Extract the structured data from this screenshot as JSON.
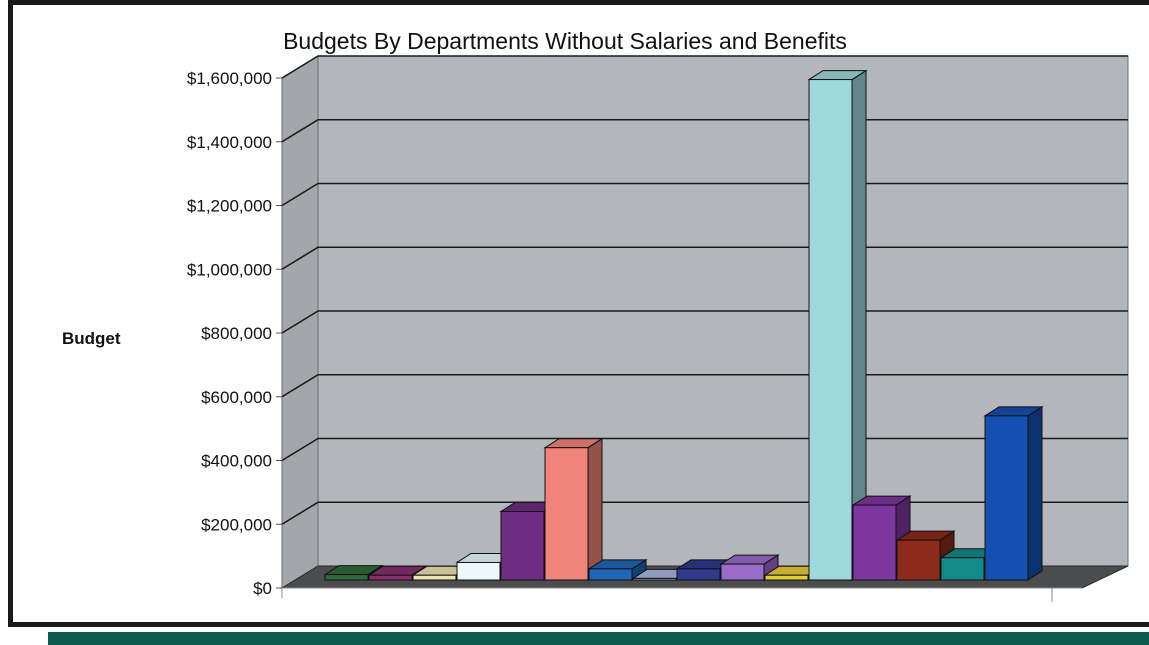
{
  "chart_data": {
    "type": "bar",
    "title": "Budgets By Departments Without Salaries and Benefits",
    "ylabel": "Budget",
    "xlabel": "",
    "ylim": [
      0,
      1600000
    ],
    "yticks": [
      "$1,600,000",
      "$1,400,000",
      "$1,200,000",
      "$1,000,000",
      "$800,000",
      "$600,000",
      "$400,000",
      "$200,000",
      "$0"
    ],
    "ytick_values": [
      1600000,
      1400000,
      1200000,
      1000000,
      800000,
      600000,
      400000,
      200000,
      0
    ],
    "grid": true,
    "style": "3d-column",
    "legend": "none",
    "series": [
      {
        "values": [
          17000
        ],
        "color": "#2f6b3a"
      },
      {
        "values": [
          15000
        ],
        "color": "#8a2f6d"
      },
      {
        "values": [
          15000
        ],
        "color": "#ece4b0"
      },
      {
        "values": [
          55000
        ],
        "color": "#eef8fa"
      },
      {
        "values": [
          215000
        ],
        "color": "#6e2c82"
      },
      {
        "values": [
          415000
        ],
        "color": "#f0847a"
      },
      {
        "values": [
          35000
        ],
        "color": "#1f66b8"
      },
      {
        "values": [
          5000
        ],
        "color": "#a8b6e0"
      },
      {
        "values": [
          35000
        ],
        "color": "#2f3a8c"
      },
      {
        "values": [
          50000
        ],
        "color": "#9a6bc9"
      },
      {
        "values": [
          15000
        ],
        "color": "#e8cd3a"
      },
      {
        "values": [
          1570000
        ],
        "color": "#9ed8da"
      },
      {
        "values": [
          235000
        ],
        "color": "#7e36a0"
      },
      {
        "values": [
          125000
        ],
        "color": "#8c2a1c"
      },
      {
        "values": [
          70000
        ],
        "color": "#138a8a"
      },
      {
        "values": [
          515000
        ],
        "color": "#1450b0"
      }
    ]
  }
}
